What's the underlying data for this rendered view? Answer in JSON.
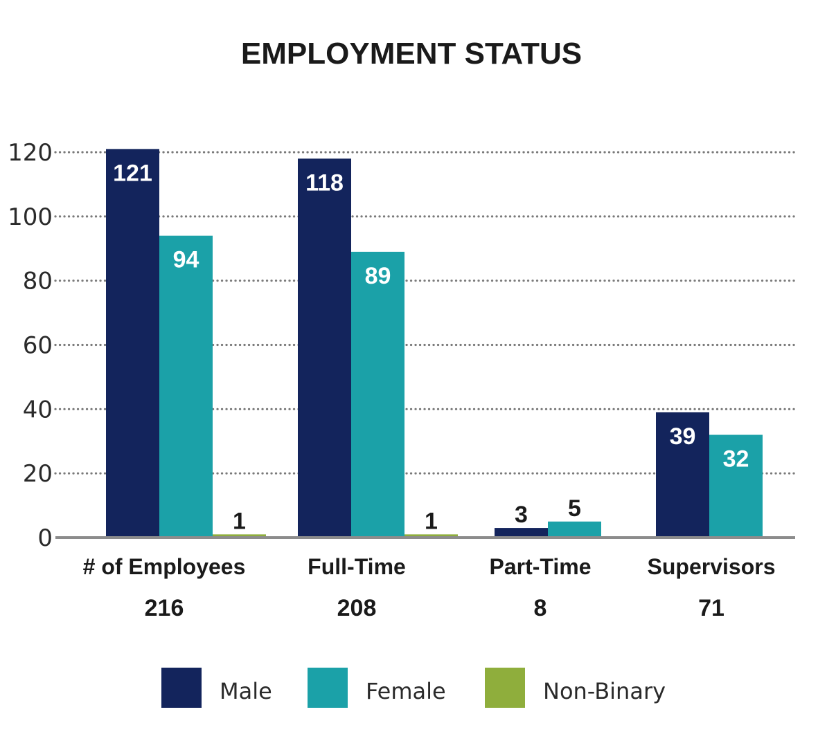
{
  "chart_data": {
    "type": "bar",
    "title": "EMPLOYMENT STATUS",
    "categories": [
      "# of Employees",
      "Full-Time",
      "Part-Time",
      "Supervisors"
    ],
    "category_totals": [
      "216",
      "208",
      "8",
      "71"
    ],
    "series": [
      {
        "name": "Male",
        "values": [
          121,
          118,
          3,
          39
        ],
        "color": "#13245c",
        "label_color": "#ffffff"
      },
      {
        "name": "Female",
        "values": [
          94,
          89,
          5,
          32
        ],
        "color": "#1ba1a8",
        "label_color": "#ffffff"
      },
      {
        "name": "Non-Binary",
        "values": [
          1,
          1,
          null,
          null
        ],
        "color": "#8fae3c",
        "label_color": "#1a1a1a"
      }
    ],
    "yticks": [
      0,
      20,
      40,
      60,
      80,
      100,
      120
    ],
    "ylim": [
      0,
      120
    ],
    "grid": "dotted horizontal",
    "legend_position": "bottom"
  }
}
